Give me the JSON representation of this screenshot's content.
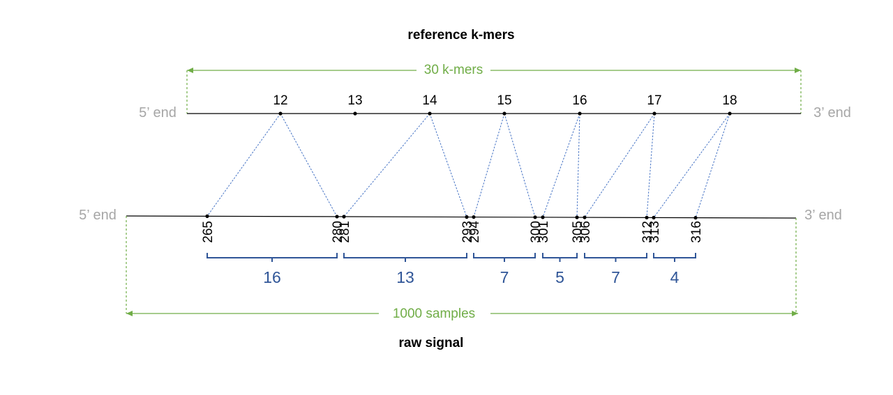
{
  "titles": {
    "top": "reference k-mers",
    "bottom": "raw signal"
  },
  "reference": {
    "five_end": "5’ end",
    "three_end": "3’ end",
    "span_label": "30 k-mers",
    "kmers": [
      "12",
      "13",
      "14",
      "15",
      "16",
      "17",
      "18"
    ]
  },
  "signal": {
    "five_end": "5’ end",
    "three_end": "3’ end",
    "span_label": "1000 samples",
    "samples": [
      "265",
      "280",
      "281",
      "293",
      "294",
      "300",
      "301",
      "305",
      "306",
      "312",
      "313",
      "316"
    ]
  },
  "segments": [
    {
      "kmer": "12",
      "start": "265",
      "end": "280",
      "count": "16"
    },
    {
      "kmer": "14",
      "start": "281",
      "end": "293",
      "count": "13"
    },
    {
      "kmer": "15",
      "start": "294",
      "end": "300",
      "count": "7"
    },
    {
      "kmer": "16",
      "start": "301",
      "end": "305",
      "count": "5"
    },
    {
      "kmer": "17",
      "start": "306",
      "end": "312",
      "count": "7"
    },
    {
      "kmer": "18",
      "start": "313",
      "end": "316",
      "count": "4"
    }
  ],
  "colors": {
    "span": "#70ad47",
    "alignment": "#4472c4",
    "count": "#2f5597",
    "end_label": "#a6a6a6"
  }
}
